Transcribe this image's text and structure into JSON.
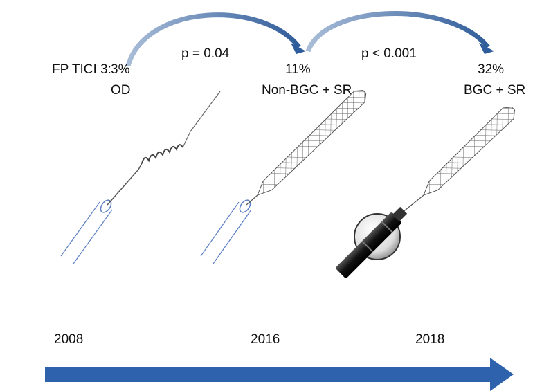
{
  "label": "FP TICI 3:",
  "stages": [
    {
      "rate": "3%",
      "device": "OD",
      "year": "2008"
    },
    {
      "rate": "11%",
      "device": "Non-BGC + SR",
      "year": "2016"
    },
    {
      "rate": "32%",
      "device": "BGC + SR",
      "year": "2018"
    }
  ],
  "transitions": [
    {
      "p": "p = 0.04"
    },
    {
      "p": "p < 0.001"
    }
  ]
}
